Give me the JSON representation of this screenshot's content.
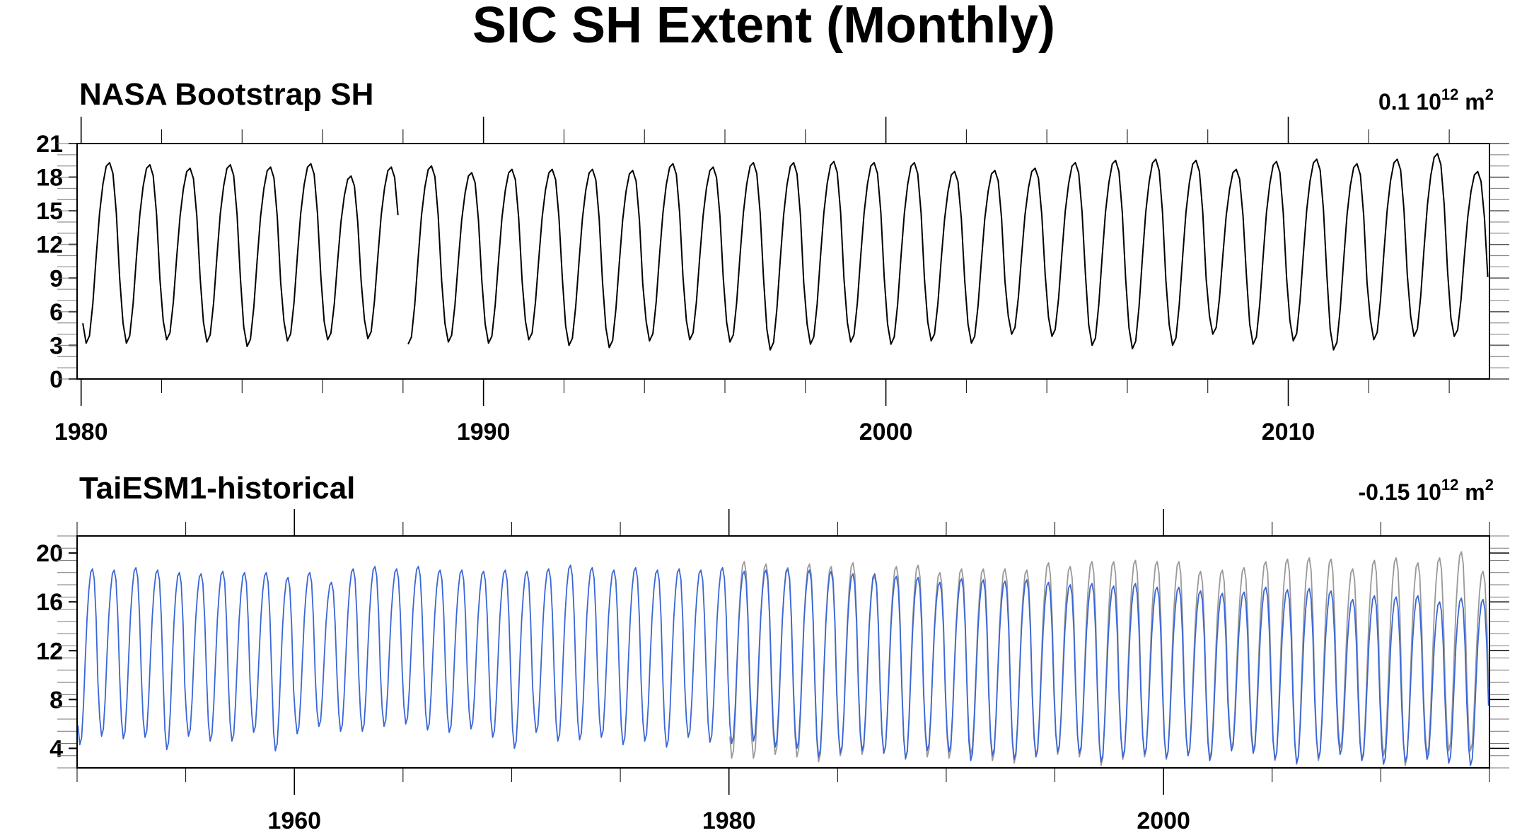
{
  "title": "SIC SH Extent (Monthly)",
  "colors": {
    "obs": "#000000",
    "model": "#3a66d6",
    "obs_overlay": "#999999",
    "frame": "#000000"
  },
  "chart_data": [
    {
      "type": "line",
      "title": "NASA Bootstrap SH",
      "right_annotation": {
        "value": "0.1",
        "unit_base": "10",
        "unit_exp": "12",
        "unit_rest": "m",
        "unit_rest_exp": "2"
      },
      "xlim": [
        1979.9,
        2015.0
      ],
      "ylim": [
        0,
        21
      ],
      "x_ticks": [
        1980,
        1990,
        2000,
        2010
      ],
      "y_ticks": [
        0,
        3,
        6,
        9,
        12,
        15,
        18,
        21
      ],
      "gap": [
        1987.9,
        1988.1
      ],
      "series": [
        {
          "role": "obs",
          "start_year": 1980.0,
          "end_year": 2015.0,
          "annual_max": [
            19.3,
            19.1,
            18.8,
            19.1,
            18.9,
            19.2,
            18.1,
            18.9,
            19.0,
            18.4,
            18.7,
            18.7,
            18.7,
            18.6,
            19.2,
            18.9,
            19.3,
            19.3,
            19.4,
            19.3,
            19.3,
            18.5,
            18.6,
            18.8,
            19.3,
            19.5,
            19.6,
            19.5,
            18.7,
            19.4,
            19.6,
            19.2,
            19.6,
            20.1,
            18.5
          ],
          "annual_min": [
            3.2,
            3.2,
            3.5,
            3.3,
            2.9,
            3.4,
            3.5,
            3.6,
            3.1,
            3.3,
            3.2,
            3.5,
            3.0,
            2.8,
            3.4,
            3.5,
            3.3,
            2.6,
            3.1,
            3.3,
            3.1,
            3.4,
            3.2,
            4.0,
            3.8,
            3.0,
            2.7,
            3.0,
            4.0,
            3.1,
            3.4,
            2.6,
            3.5,
            3.8,
            3.8
          ]
        }
      ]
    },
    {
      "type": "line",
      "title": "TaiESM1-historical",
      "right_annotation": {
        "value": "-0.15",
        "unit_base": "10",
        "unit_exp": "12",
        "unit_rest": "m",
        "unit_rest_exp": "2"
      },
      "xlim": [
        1950.0,
        2015.0
      ],
      "ylim": [
        2.4,
        21.4
      ],
      "x_ticks": [
        1960,
        1980,
        2000
      ],
      "y_ticks": [
        4,
        8,
        12,
        16,
        20
      ],
      "series": [
        {
          "role": "model",
          "start_year": 1950.0,
          "end_year": 2015.0,
          "annual_max": [
            18.7,
            18.6,
            18.8,
            18.6,
            18.4,
            18.3,
            18.5,
            18.4,
            18.4,
            18.0,
            18.4,
            17.6,
            18.7,
            18.9,
            18.7,
            18.9,
            18.6,
            18.6,
            18.5,
            18.6,
            18.5,
            18.7,
            19.0,
            18.8,
            18.6,
            18.8,
            18.6,
            18.7,
            18.6,
            18.8,
            18.5,
            18.6,
            18.7,
            18.6,
            18.5,
            18.3,
            18.3,
            18.1,
            18.0,
            17.6,
            17.9,
            17.8,
            17.7,
            17.8,
            17.6,
            17.4,
            17.5,
            17.3,
            17.5,
            17.2,
            17.2,
            16.9,
            16.7,
            16.8,
            17.2,
            17.0,
            17.1,
            16.9,
            16.2,
            16.5,
            16.4,
            16.5,
            16.0,
            16.3,
            16.2
          ],
          "annual_min": [
            4.3,
            5.0,
            4.8,
            4.9,
            3.9,
            5.0,
            4.6,
            4.6,
            5.3,
            3.8,
            5.2,
            5.8,
            5.4,
            5.4,
            5.8,
            6.0,
            5.5,
            5.3,
            5.6,
            4.9,
            4.0,
            5.3,
            4.6,
            4.7,
            4.9,
            4.3,
            4.6,
            4.1,
            4.9,
            4.5,
            4.4,
            4.6,
            4.1,
            4.0,
            3.3,
            3.6,
            3.8,
            3.6,
            3.2,
            3.8,
            3.7,
            3.0,
            3.4,
            3.1,
            3.3,
            3.7,
            3.6,
            2.9,
            3.3,
            3.5,
            3.2,
            3.4,
            3.0,
            3.8,
            3.6,
            3.1,
            2.8,
            3.2,
            3.5,
            3.0,
            2.7,
            2.9,
            3.1,
            2.8,
            2.6
          ]
        },
        {
          "role": "obs_overlay",
          "start_year": 1980.0,
          "end_year": 2015.0,
          "annual_max": [
            19.3,
            19.1,
            18.8,
            19.1,
            18.9,
            19.2,
            18.1,
            18.9,
            19.0,
            18.4,
            18.7,
            18.7,
            18.7,
            18.6,
            19.2,
            18.9,
            19.3,
            19.3,
            19.4,
            19.3,
            19.3,
            18.5,
            18.6,
            18.8,
            19.3,
            19.5,
            19.6,
            19.5,
            18.7,
            19.4,
            19.6,
            19.2,
            19.6,
            20.1,
            18.5
          ],
          "annual_min": [
            3.2,
            3.2,
            3.5,
            3.3,
            2.9,
            3.4,
            3.5,
            3.6,
            3.1,
            3.3,
            3.2,
            3.5,
            3.0,
            2.8,
            3.4,
            3.5,
            3.3,
            2.6,
            3.1,
            3.3,
            3.1,
            3.4,
            3.2,
            4.0,
            3.8,
            3.0,
            2.7,
            3.0,
            4.0,
            3.1,
            3.4,
            2.6,
            3.5,
            3.8,
            3.8
          ]
        }
      ]
    }
  ]
}
